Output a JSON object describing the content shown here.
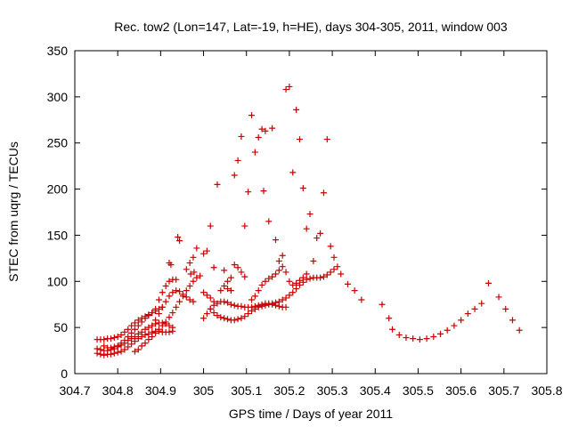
{
  "chart_data": {
    "type": "scatter",
    "title": "Rec. tow2 (Lon=147, Lat=-19, h=HE), days 304-305, 2011, window 003",
    "xlabel": "GPS time / Days of year 2011",
    "ylabel": "STEC from uqrg / TECUs",
    "xlim": [
      304.7,
      305.8
    ],
    "ylim": [
      0,
      350
    ],
    "xticks": [
      "304.7",
      "304.8",
      "304.9",
      "305",
      "305.1",
      "305.2",
      "305.3",
      "305.4",
      "305.5",
      "305.6",
      "305.7",
      "305.8"
    ],
    "yticks": [
      "0",
      "50",
      "100",
      "150",
      "200",
      "250",
      "300",
      "350"
    ],
    "grid": false,
    "marker": "+",
    "color": "#cc0000",
    "points": [
      [
        304.752,
        22
      ],
      [
        304.76,
        21
      ],
      [
        304.768,
        20
      ],
      [
        304.776,
        21
      ],
      [
        304.784,
        21
      ],
      [
        304.792,
        22
      ],
      [
        304.8,
        23
      ],
      [
        304.808,
        24
      ],
      [
        304.816,
        26
      ],
      [
        304.824,
        29
      ],
      [
        304.832,
        32
      ],
      [
        304.84,
        35
      ],
      [
        304.848,
        38
      ],
      [
        304.856,
        40
      ],
      [
        304.864,
        42
      ],
      [
        304.872,
        43
      ],
      [
        304.88,
        45
      ],
      [
        304.888,
        46
      ],
      [
        304.896,
        46
      ],
      [
        304.904,
        45
      ],
      [
        304.912,
        45
      ],
      [
        304.92,
        45
      ],
      [
        304.928,
        46
      ],
      [
        304.752,
        27
      ],
      [
        304.76,
        26
      ],
      [
        304.768,
        25
      ],
      [
        304.776,
        25
      ],
      [
        304.784,
        26
      ],
      [
        304.792,
        27
      ],
      [
        304.8,
        29
      ],
      [
        304.808,
        31
      ],
      [
        304.816,
        33
      ],
      [
        304.824,
        36
      ],
      [
        304.832,
        38
      ],
      [
        304.84,
        40
      ],
      [
        304.848,
        43
      ],
      [
        304.856,
        45
      ],
      [
        304.864,
        48
      ],
      [
        304.872,
        50
      ],
      [
        304.88,
        52
      ],
      [
        304.888,
        54
      ],
      [
        304.896,
        55
      ],
      [
        304.904,
        55
      ],
      [
        304.912,
        54
      ],
      [
        304.92,
        52
      ],
      [
        304.928,
        50
      ],
      [
        304.752,
        37
      ],
      [
        304.76,
        37
      ],
      [
        304.768,
        37
      ],
      [
        304.776,
        38
      ],
      [
        304.784,
        38
      ],
      [
        304.792,
        39
      ],
      [
        304.8,
        40
      ],
      [
        304.808,
        42
      ],
      [
        304.816,
        45
      ],
      [
        304.824,
        48
      ],
      [
        304.832,
        52
      ],
      [
        304.84,
        55
      ],
      [
        304.848,
        58
      ],
      [
        304.856,
        60
      ],
      [
        304.864,
        62
      ],
      [
        304.872,
        64
      ],
      [
        304.88,
        66
      ],
      [
        304.888,
        68
      ],
      [
        304.896,
        70
      ],
      [
        304.904,
        72
      ],
      [
        304.768,
        30
      ],
      [
        304.776,
        28
      ],
      [
        304.784,
        28
      ],
      [
        304.792,
        29
      ],
      [
        304.8,
        30
      ],
      [
        304.808,
        33
      ],
      [
        304.816,
        36
      ],
      [
        304.824,
        40
      ],
      [
        304.832,
        44
      ],
      [
        304.84,
        48
      ],
      [
        304.848,
        52
      ],
      [
        304.856,
        56
      ],
      [
        304.864,
        60
      ],
      [
        304.872,
        63
      ],
      [
        304.88,
        66
      ],
      [
        304.84,
        24
      ],
      [
        304.848,
        26
      ],
      [
        304.856,
        30
      ],
      [
        304.864,
        33
      ],
      [
        304.872,
        37
      ],
      [
        304.88,
        40
      ],
      [
        304.888,
        44
      ],
      [
        304.896,
        48
      ],
      [
        304.904,
        52
      ],
      [
        304.912,
        56
      ],
      [
        304.92,
        61
      ],
      [
        304.928,
        66
      ],
      [
        304.936,
        72
      ],
      [
        304.944,
        78
      ],
      [
        304.952,
        84
      ],
      [
        304.96,
        90
      ],
      [
        304.968,
        95
      ],
      [
        304.976,
        100
      ],
      [
        304.984,
        104
      ],
      [
        304.992,
        106
      ],
      [
        304.88,
        52
      ],
      [
        304.888,
        58
      ],
      [
        304.896,
        65
      ],
      [
        304.904,
        72
      ],
      [
        304.912,
        78
      ],
      [
        304.92,
        84
      ],
      [
        304.928,
        88
      ],
      [
        304.936,
        90
      ],
      [
        304.944,
        89
      ],
      [
        304.952,
        86
      ],
      [
        304.96,
        83
      ],
      [
        304.968,
        80
      ],
      [
        304.976,
        78
      ],
      [
        304.888,
        70
      ],
      [
        304.896,
        80
      ],
      [
        304.904,
        88
      ],
      [
        304.912,
        95
      ],
      [
        304.92,
        100
      ],
      [
        304.928,
        102
      ],
      [
        304.936,
        102
      ],
      [
        304.92,
        120
      ],
      [
        304.924,
        118
      ],
      [
        304.94,
        148
      ],
      [
        304.944,
        144
      ],
      [
        304.96,
        113
      ],
      [
        304.968,
        120
      ],
      [
        304.976,
        126
      ],
      [
        304.984,
        136
      ],
      [
        304.97,
        108
      ],
      [
        304.978,
        110
      ],
      [
        305.0,
        60
      ],
      [
        305.008,
        65
      ],
      [
        305.016,
        70
      ],
      [
        305.024,
        74
      ],
      [
        305.032,
        76
      ],
      [
        305.04,
        78
      ],
      [
        305.048,
        78
      ],
      [
        305.056,
        77
      ],
      [
        305.064,
        75
      ],
      [
        305.072,
        74
      ],
      [
        305.08,
        73
      ],
      [
        305.088,
        73
      ],
      [
        305.096,
        72
      ],
      [
        305.104,
        72
      ],
      [
        305.112,
        72
      ],
      [
        305.12,
        73
      ],
      [
        305.128,
        74
      ],
      [
        305.136,
        75
      ],
      [
        305.144,
        76
      ],
      [
        305.152,
        76
      ],
      [
        305.16,
        75
      ],
      [
        305.168,
        74
      ],
      [
        305.176,
        73
      ],
      [
        305.184,
        72
      ],
      [
        305.192,
        72
      ],
      [
        305.016,
        70
      ],
      [
        305.024,
        66
      ],
      [
        305.032,
        63
      ],
      [
        305.04,
        61
      ],
      [
        305.048,
        60
      ],
      [
        305.056,
        59
      ],
      [
        305.064,
        58
      ],
      [
        305.072,
        58
      ],
      [
        305.08,
        59
      ],
      [
        305.088,
        60
      ],
      [
        305.096,
        62
      ],
      [
        305.104,
        65
      ],
      [
        305.112,
        68
      ],
      [
        305.12,
        70
      ],
      [
        305.128,
        72
      ],
      [
        305.136,
        73
      ],
      [
        305.144,
        74
      ],
      [
        305.152,
        75
      ],
      [
        305.16,
        76
      ],
      [
        305.168,
        77
      ],
      [
        305.176,
        78
      ],
      [
        305.184,
        80
      ],
      [
        305.192,
        82
      ],
      [
        305.2,
        85
      ],
      [
        305.208,
        88
      ],
      [
        305.216,
        92
      ],
      [
        305.224,
        96
      ],
      [
        305.232,
        99
      ],
      [
        305.24,
        102
      ],
      [
        305.248,
        103
      ],
      [
        305.256,
        104
      ],
      [
        305.264,
        104
      ],
      [
        305.272,
        104
      ],
      [
        305.28,
        105
      ],
      [
        305.288,
        107
      ],
      [
        305.296,
        110
      ],
      [
        305.304,
        113
      ],
      [
        305.0,
        88
      ],
      [
        305.008,
        85
      ],
      [
        305.016,
        82
      ],
      [
        305.024,
        78
      ],
      [
        305.04,
        90
      ],
      [
        305.048,
        95
      ],
      [
        305.056,
        100
      ],
      [
        305.064,
        104
      ],
      [
        305.0,
        130
      ],
      [
        305.008,
        133
      ],
      [
        305.016,
        160
      ],
      [
        305.024,
        115
      ],
      [
        305.032,
        205
      ],
      [
        305.048,
        112
      ],
      [
        305.056,
        92
      ],
      [
        305.064,
        90
      ],
      [
        305.072,
        215
      ],
      [
        305.08,
        231
      ],
      [
        305.088,
        257
      ],
      [
        305.096,
        160
      ],
      [
        305.104,
        197
      ],
      [
        305.112,
        280
      ],
      [
        305.12,
        240
      ],
      [
        305.128,
        256
      ],
      [
        305.136,
        265
      ],
      [
        305.14,
        198
      ],
      [
        305.144,
        263
      ],
      [
        305.152,
        165
      ],
      [
        305.16,
        266
      ],
      [
        305.168,
        145
      ],
      [
        305.176,
        122
      ],
      [
        305.184,
        128
      ],
      [
        305.192,
        308
      ],
      [
        305.2,
        311
      ],
      [
        305.208,
        218
      ],
      [
        305.216,
        286
      ],
      [
        305.224,
        254
      ],
      [
        305.232,
        201
      ],
      [
        305.24,
        157
      ],
      [
        305.248,
        173
      ],
      [
        305.256,
        122
      ],
      [
        305.264,
        147
      ],
      [
        305.272,
        152
      ],
      [
        305.28,
        196
      ],
      [
        305.288,
        254
      ],
      [
        305.296,
        138
      ],
      [
        305.304,
        126
      ],
      [
        305.312,
        116
      ],
      [
        305.32,
        108
      ],
      [
        305.072,
        118
      ],
      [
        305.08,
        115
      ],
      [
        305.088,
        110
      ],
      [
        305.096,
        105
      ],
      [
        305.112,
        80
      ],
      [
        305.12,
        84
      ],
      [
        305.128,
        90
      ],
      [
        305.136,
        96
      ],
      [
        305.144,
        100
      ],
      [
        305.152,
        103
      ],
      [
        305.16,
        105
      ],
      [
        305.168,
        108
      ],
      [
        305.176,
        112
      ],
      [
        305.184,
        116
      ],
      [
        305.192,
        110
      ],
      [
        305.2,
        100
      ],
      [
        305.208,
        96
      ],
      [
        305.216,
        98
      ],
      [
        305.224,
        101
      ],
      [
        305.232,
        104
      ],
      [
        305.24,
        108
      ],
      [
        305.336,
        97
      ],
      [
        305.352,
        90
      ],
      [
        305.368,
        80
      ],
      [
        305.416,
        75
      ],
      [
        305.432,
        60
      ],
      [
        305.44,
        48
      ],
      [
        305.456,
        42
      ],
      [
        305.472,
        39
      ],
      [
        305.488,
        38
      ],
      [
        305.504,
        37
      ],
      [
        305.52,
        38
      ],
      [
        305.536,
        40
      ],
      [
        305.552,
        43
      ],
      [
        305.568,
        47
      ],
      [
        305.584,
        52
      ],
      [
        305.6,
        58
      ],
      [
        305.616,
        65
      ],
      [
        305.632,
        70
      ],
      [
        305.648,
        76
      ],
      [
        305.664,
        98
      ],
      [
        305.688,
        83
      ],
      [
        305.704,
        70
      ],
      [
        305.72,
        58
      ],
      [
        305.736,
        47
      ]
    ]
  }
}
